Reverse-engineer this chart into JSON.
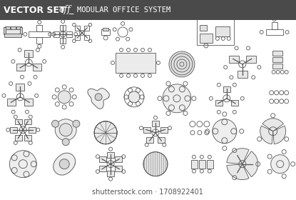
{
  "title_bar_color": "#4a4a4a",
  "bg_color": "#f0f0f0",
  "content_bg": "#f8f8f8",
  "line_color": "#555555",
  "title_text": "VECTOR SET",
  "title_italic": "off",
  "title_main": "MODULAR OFFICE SYSTEM",
  "watermark": "shutterstock.com · 1708922401",
  "fig_bg": "#ffffff",
  "lw": 0.6,
  "lw_thin": 0.4,
  "lw_thick": 0.9
}
